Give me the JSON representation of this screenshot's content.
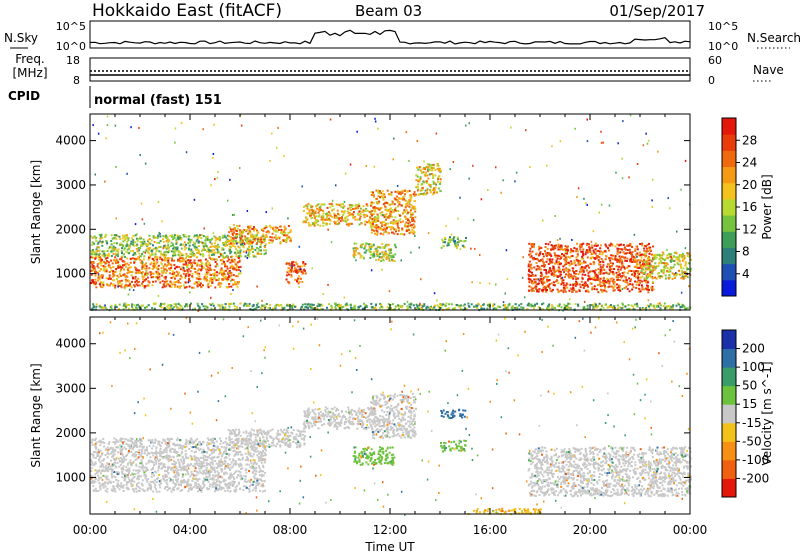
{
  "header": {
    "title": "Hokkaido East (fitACF)",
    "beam": "Beam 03",
    "date": "01/Sep/2017"
  },
  "summary": {
    "nsky_label": "N.Sky",
    "nsky_ticks": [
      "10^5",
      "10^0"
    ],
    "nsearch_label": "N.Search",
    "freq_label_line1": "Freq.",
    "freq_label_line2": "[MHz]",
    "freq_ticks": [
      "18",
      "8"
    ],
    "nave_label": "Nave",
    "nave_ticks": [
      "60",
      "0"
    ],
    "cpid_label": "CPID",
    "cpid_value": "normal (fast) 151"
  },
  "chart_data": [
    {
      "type": "heatmap",
      "title": "",
      "xlabel": "",
      "ylabel": "Slant Range [km]",
      "x_ticks": [
        "00:00",
        "04:00",
        "08:00",
        "12:00",
        "16:00",
        "20:00",
        "00:00"
      ],
      "y_ticks": [
        1000,
        2000,
        3000,
        4000
      ],
      "ylim": [
        180,
        4600
      ],
      "xlim_hours": [
        0,
        24
      ],
      "colorbar": {
        "label": "Power [dB]",
        "ticks": [
          4,
          8,
          12,
          16,
          20,
          24,
          28
        ],
        "range": [
          0,
          32
        ],
        "colors": [
          "#0a1adc",
          "#1f4fb4",
          "#2e7f7a",
          "#3e9e58",
          "#76c43d",
          "#b8d832",
          "#f3c21c",
          "#f59a14",
          "#ef6a0e",
          "#ea3c0b",
          "#e3170a"
        ]
      },
      "regions": [
        {
          "t0": 0.0,
          "t1": 6.0,
          "r0": 700,
          "r1": 1400,
          "value": 24
        },
        {
          "t0": 0.0,
          "t1": 7.0,
          "r0": 1400,
          "r1": 1900,
          "value": 15
        },
        {
          "t0": 5.5,
          "t1": 8.0,
          "r0": 1700,
          "r1": 2100,
          "value": 22
        },
        {
          "t0": 7.8,
          "t1": 8.6,
          "r0": 800,
          "r1": 1300,
          "value": 26
        },
        {
          "t0": 8.5,
          "t1": 11.5,
          "r0": 2100,
          "r1": 2600,
          "value": 20
        },
        {
          "t0": 10.5,
          "t1": 12.2,
          "r0": 1300,
          "r1": 1700,
          "value": 16
        },
        {
          "t0": 11.2,
          "t1": 13.0,
          "r0": 1900,
          "r1": 2900,
          "value": 22
        },
        {
          "t0": 13.0,
          "t1": 14.0,
          "r0": 2800,
          "r1": 3500,
          "value": 18
        },
        {
          "t0": 14.0,
          "t1": 15.0,
          "r0": 1600,
          "r1": 1850,
          "value": 12
        },
        {
          "t0": 17.5,
          "t1": 22.5,
          "r0": 600,
          "r1": 1700,
          "value": 27
        },
        {
          "t0": 22.0,
          "t1": 24.0,
          "r0": 900,
          "r1": 1500,
          "value": 18
        },
        {
          "t0": 0.0,
          "t1": 24.0,
          "r0": 200,
          "r1": 350,
          "value": 13
        }
      ]
    },
    {
      "type": "heatmap",
      "title": "",
      "xlabel": "Time UT",
      "ylabel": "Slant Range [km]",
      "x_ticks": [
        "00:00",
        "04:00",
        "08:00",
        "12:00",
        "16:00",
        "20:00",
        "00:00"
      ],
      "y_ticks": [
        1000,
        2000,
        3000,
        4000
      ],
      "ylim": [
        180,
        4600
      ],
      "xlim_hours": [
        0,
        24
      ],
      "colorbar": {
        "label": "Velocity [m s^-1]",
        "ticks": [
          200,
          100,
          50,
          15,
          -15,
          -50,
          -100,
          -200
        ],
        "colors": [
          "#1a2fa8",
          "#2e6fa6",
          "#3a9c69",
          "#6dc23d",
          "#c8c8c8",
          "#f2c218",
          "#f59014",
          "#ef6010",
          "#e3170a"
        ]
      },
      "regions": [
        {
          "t0": 0.0,
          "t1": 7.0,
          "r0": 700,
          "r1": 1900,
          "value": 0
        },
        {
          "t0": 5.5,
          "t1": 8.6,
          "r0": 1700,
          "r1": 2100,
          "value": 0
        },
        {
          "t0": 8.5,
          "t1": 11.5,
          "r0": 2100,
          "r1": 2600,
          "value": 0
        },
        {
          "t0": 10.5,
          "t1": 12.2,
          "r0": 1300,
          "r1": 1700,
          "value": 30
        },
        {
          "t0": 11.2,
          "t1": 13.0,
          "r0": 1900,
          "r1": 2900,
          "value": 0
        },
        {
          "t0": 14.0,
          "t1": 15.0,
          "r0": 2350,
          "r1": 2550,
          "value": 150
        },
        {
          "t0": 14.0,
          "t1": 15.0,
          "r0": 1600,
          "r1": 1850,
          "value": 40
        },
        {
          "t0": 17.5,
          "t1": 24.0,
          "r0": 600,
          "r1": 1700,
          "value": 0
        },
        {
          "t0": 15.0,
          "t1": 18.0,
          "r0": 200,
          "r1": 320,
          "value": -40
        }
      ]
    }
  ]
}
